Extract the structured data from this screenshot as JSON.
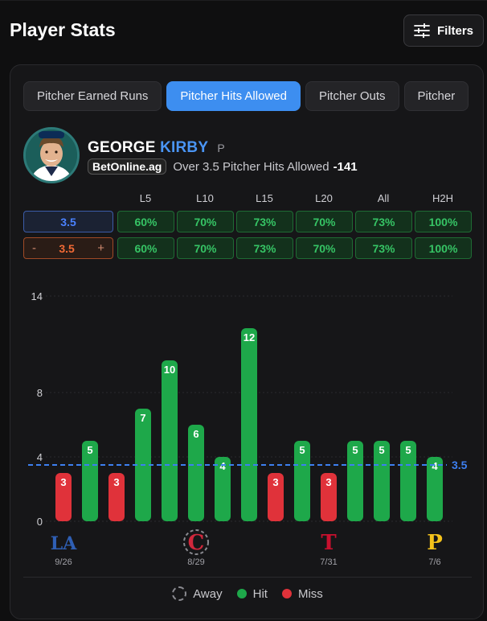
{
  "page": {
    "title": "Player Stats"
  },
  "filters": {
    "label": "Filters"
  },
  "tabs": [
    {
      "label": "Pitcher Earned Runs",
      "active": false
    },
    {
      "label": "Pitcher Hits Allowed",
      "active": true
    },
    {
      "label": "Pitcher Outs",
      "active": false
    },
    {
      "label": "Pitcher",
      "active": false
    }
  ],
  "player": {
    "first_name": "GEORGE",
    "last_name": "KIRBY",
    "position": "P",
    "sportsbook": "BetOnline.ag",
    "prop": "Over 3.5 Pitcher Hits Allowed",
    "odds": "-141"
  },
  "splits": {
    "headers": [
      "L5",
      "L10",
      "L15",
      "L20",
      "All",
      "H2H"
    ],
    "main_line": "3.5",
    "main_values": [
      "60%",
      "70%",
      "73%",
      "70%",
      "73%",
      "100%"
    ],
    "alt_line": "3.5",
    "alt_minus": "-",
    "alt_plus": "+",
    "alt_values": [
      "60%",
      "70%",
      "73%",
      "70%",
      "73%",
      "100%"
    ]
  },
  "chart_data": {
    "type": "bar",
    "values": [
      3,
      5,
      3,
      7,
      10,
      6,
      4,
      12,
      3,
      5,
      3,
      5,
      5,
      5,
      4
    ],
    "results": [
      "miss",
      "hit",
      "miss",
      "hit",
      "hit",
      "hit",
      "hit",
      "hit",
      "miss",
      "hit",
      "miss",
      "hit",
      "hit",
      "hit",
      "hit"
    ],
    "yticks": [
      "14",
      "8",
      "4",
      "0"
    ],
    "ytick_values": [
      14,
      8,
      4,
      0
    ],
    "ylim": [
      0,
      14
    ],
    "line": 3.5,
    "line_label": "3.5",
    "markers": [
      {
        "index": 0,
        "team": "LA",
        "date": "9/26",
        "away": false,
        "color": "#2f5fb4"
      },
      {
        "index": 5,
        "team": "C",
        "date": "8/29",
        "away": true,
        "color": "#d0283c"
      },
      {
        "index": 10,
        "team": "T",
        "date": "7/31",
        "away": false,
        "color": "#c8102e"
      },
      {
        "index": 14,
        "team": "P",
        "date": "7/6",
        "away": false,
        "color": "#f4c21a"
      }
    ],
    "hit_color": "#1ea84a",
    "miss_color": "#e0323a",
    "line_color": "#3d7ff0"
  },
  "legend": {
    "away": "Away",
    "hit": "Hit",
    "miss": "Miss"
  }
}
